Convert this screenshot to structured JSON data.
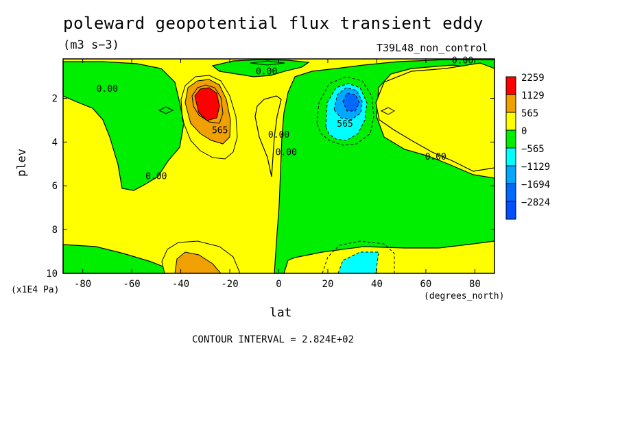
{
  "title": "poleward geopotential flux transient eddy",
  "units": "(m3 s−3)",
  "run_label": "T39L48_non_control",
  "contour_interval": "CONTOUR INTERVAL = 2.824E+02",
  "chart_data": {
    "type": "heatmap",
    "xlabel": "lat",
    "xunit_label": "(degrees_north)",
    "ylabel": "plev",
    "yunit_label": "(x1E4 Pa)",
    "xlim": [
      -88,
      88
    ],
    "ylim": [
      10,
      0.2
    ],
    "xticks": [
      -80,
      -60,
      -40,
      -20,
      0,
      20,
      40,
      60,
      80
    ],
    "yticks": [
      2,
      4,
      6,
      8,
      10
    ],
    "colorbar": {
      "levels": [
        "2259",
        "1129",
        "565",
        "0",
        "−565",
        "−1129",
        "−1694",
        "−2824"
      ],
      "colors": [
        "#ff0000",
        "#f0a000",
        "#ffff00",
        "#00ee00",
        "#00ffff",
        "#00a8ff",
        "#006aff",
        "#0050ff"
      ]
    },
    "contour_labels": [
      {
        "text": "0.00",
        "lat": -70,
        "plev": 1.7
      },
      {
        "text": "0.00",
        "lat": -5,
        "plev": 0.9
      },
      {
        "text": "0.00",
        "lat": 75,
        "plev": 0.4
      },
      {
        "text": "565",
        "lat": -24,
        "plev": 3.6
      },
      {
        "text": "0.00",
        "lat": 0,
        "plev": 3.8
      },
      {
        "text": "0.00",
        "lat": 3,
        "plev": 4.6
      },
      {
        "text": "565",
        "lat": 27,
        "plev": 3.3
      },
      {
        "text": "0.00",
        "lat": 64,
        "plev": 4.8
      },
      {
        "text": "0.00",
        "lat": -50,
        "plev": 5.7
      }
    ],
    "features": [
      {
        "kind": "max",
        "value_level": "2259",
        "lat": -30,
        "plev": 2.0
      },
      {
        "kind": "min",
        "value_level": "−2824",
        "lat": 29,
        "plev": 2.0
      },
      {
        "kind": "max",
        "value_level": "1129",
        "lat": -36,
        "plev": 9.5
      },
      {
        "kind": "min",
        "value_level": "−1129",
        "lat": 30,
        "plev": 9.5
      }
    ]
  }
}
